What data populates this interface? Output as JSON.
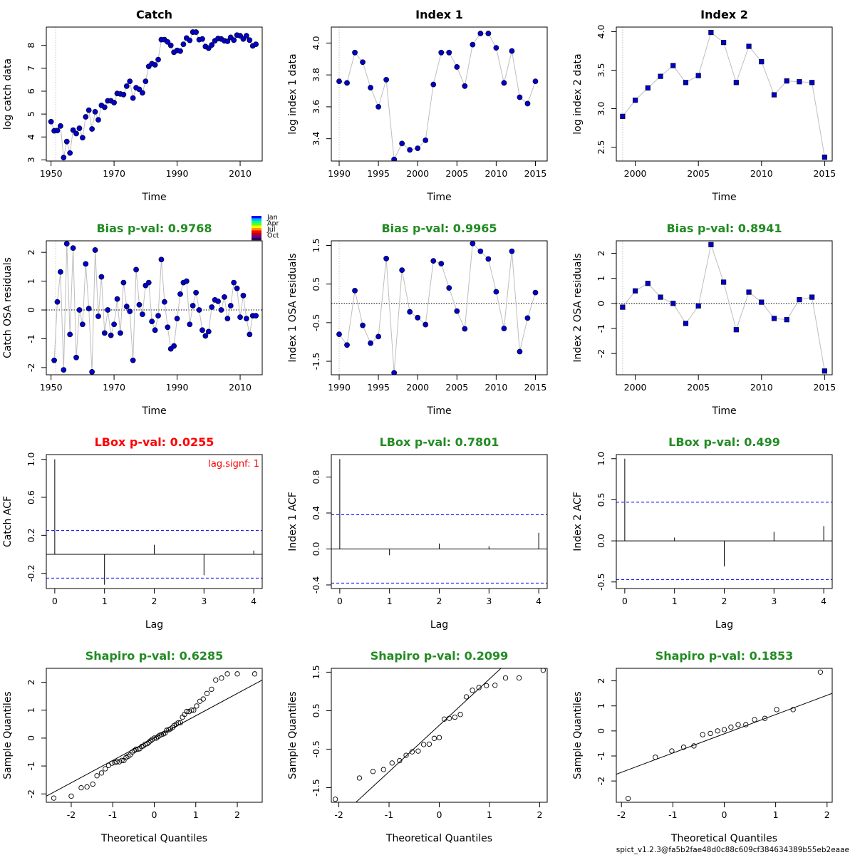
{
  "footer": "spict_v1.2.3@fa5b2fae48d0c88c609cf384634389b55eb2eaae",
  "colors": {
    "point_fill": "#0000CD",
    "point_stroke": "#000033",
    "connector": "#BEBEBE",
    "pass": "#228B22",
    "fail": "#FF0000",
    "ci_line": "#0000FF",
    "grid_line": "#BEBEBE"
  },
  "season_legend": {
    "labels": [
      "Jan",
      "Apr",
      "Jul",
      "Oct"
    ],
    "colors": [
      "#0000FF",
      "#00B4FF",
      "#00FF96",
      "#64FF00",
      "#FFFF00",
      "#FF9600",
      "#FF0000",
      "#B40000",
      "#6400A0",
      "#30004C"
    ]
  },
  "chart_data": [
    {
      "type": "scatter",
      "title": "Catch",
      "title_color": "#000000",
      "xlabel": "Time",
      "ylabel": "log catch data",
      "xlim": [
        1948.5,
        2017
      ],
      "ylim": [
        2.95,
        8.8
      ],
      "xticks": [
        1950,
        1970,
        1990,
        2010
      ],
      "yticks": [
        3,
        4,
        5,
        6,
        7,
        8
      ],
      "marker": "circle",
      "vline": 1951.5,
      "x": [
        1950,
        1951,
        1952,
        1953,
        1954,
        1955,
        1956,
        1957,
        1958,
        1959,
        1960,
        1961,
        1962,
        1963,
        1964,
        1965,
        1966,
        1967,
        1968,
        1969,
        1970,
        1971,
        1972,
        1973,
        1974,
        1975,
        1976,
        1977,
        1978,
        1979,
        1980,
        1981,
        1982,
        1983,
        1984,
        1985,
        1986,
        1987,
        1988,
        1989,
        1990,
        1991,
        1992,
        1993,
        1994,
        1995,
        1996,
        1997,
        1998,
        1999,
        2000,
        2001,
        2002,
        2003,
        2004,
        2005,
        2006,
        2007,
        2008,
        2009,
        2010,
        2011,
        2012,
        2013,
        2014,
        2015
      ],
      "y": [
        4.67,
        4.27,
        4.28,
        4.48,
        3.1,
        3.8,
        3.3,
        4.3,
        4.15,
        4.38,
        3.97,
        4.88,
        5.17,
        4.35,
        5.1,
        4.75,
        5.38,
        5.3,
        5.58,
        5.58,
        5.5,
        5.9,
        5.88,
        5.85,
        6.22,
        6.43,
        5.7,
        6.15,
        6.08,
        5.93,
        6.43,
        7.08,
        7.2,
        7.15,
        7.38,
        8.25,
        8.25,
        8.15,
        8.0,
        7.7,
        7.78,
        7.75,
        8.05,
        8.32,
        8.22,
        8.58,
        8.58,
        8.25,
        8.28,
        7.95,
        7.88,
        8.02,
        8.2,
        8.3,
        8.28,
        8.2,
        8.18,
        8.35,
        8.23,
        8.45,
        8.42,
        8.28,
        8.42,
        8.23,
        7.98,
        8.05
      ]
    },
    {
      "type": "scatter",
      "title": "Index 1",
      "title_color": "#000000",
      "xlabel": "Time",
      "ylabel": "log index 1 data",
      "xlim": [
        1989,
        2016.5
      ],
      "ylim": [
        3.26,
        4.1
      ],
      "xticks": [
        1990,
        1995,
        2000,
        2005,
        2010,
        2015
      ],
      "yticks": [
        3.4,
        3.6,
        3.8,
        4.0
      ],
      "ytick_labels": [
        "3.4",
        "3.6",
        "3.8",
        "4.0"
      ],
      "marker": "circle",
      "vline": 1990,
      "x": [
        1990,
        1991,
        1992,
        1993,
        1994,
        1995,
        1996,
        1997,
        1998,
        1999,
        2000,
        2001,
        2002,
        2003,
        2004,
        2005,
        2006,
        2007,
        2008,
        2009,
        2010,
        2011,
        2012,
        2013,
        2014,
        2015
      ],
      "y": [
        3.76,
        3.75,
        3.94,
        3.88,
        3.72,
        3.6,
        3.77,
        3.27,
        3.37,
        3.33,
        3.34,
        3.39,
        3.74,
        3.94,
        3.94,
        3.85,
        3.73,
        3.99,
        4.06,
        4.06,
        3.97,
        3.75,
        3.95,
        3.66,
        3.62,
        3.76
      ]
    },
    {
      "type": "scatter",
      "title": "Index 2",
      "title_color": "#000000",
      "xlabel": "Time",
      "ylabel": "log index 2 data",
      "xlim": [
        1998.5,
        2015.6
      ],
      "ylim": [
        2.32,
        4.06
      ],
      "xticks": [
        2000,
        2005,
        2010,
        2015
      ],
      "yticks": [
        2.5,
        3.0,
        3.5,
        4.0
      ],
      "ytick_labels": [
        "2.5",
        "3.0",
        "3.5",
        "4.0"
      ],
      "marker": "square",
      "vline": 1999,
      "x": [
        1999,
        2000,
        2001,
        2002,
        2003,
        2004,
        2005,
        2006,
        2007,
        2008,
        2009,
        2010,
        2011,
        2012,
        2013,
        2014,
        2015
      ],
      "y": [
        2.9,
        3.11,
        3.27,
        3.42,
        3.56,
        3.34,
        3.43,
        3.99,
        3.86,
        3.34,
        3.81,
        3.61,
        3.18,
        3.36,
        3.35,
        3.34,
        2.37
      ]
    },
    {
      "type": "scatter",
      "title": "Bias p-val: 0.9768",
      "title_color": "#228B22",
      "xlabel": "Time",
      "ylabel": "Catch OSA residuals",
      "xlim": [
        1948.5,
        2017
      ],
      "ylim": [
        -2.25,
        2.4
      ],
      "xticks": [
        1950,
        1970,
        1990,
        2010
      ],
      "yticks": [
        -2,
        -1,
        0,
        1,
        2
      ],
      "marker": "circle",
      "zero_line": true,
      "vline": 1951.5,
      "season_legend": true,
      "x": [
        1951,
        1952,
        1953,
        1954,
        1955,
        1956,
        1957,
        1958,
        1959,
        1960,
        1961,
        1962,
        1963,
        1964,
        1965,
        1966,
        1967,
        1968,
        1969,
        1970,
        1971,
        1972,
        1973,
        1974,
        1975,
        1976,
        1977,
        1978,
        1979,
        1980,
        1981,
        1982,
        1983,
        1984,
        1985,
        1986,
        1987,
        1988,
        1989,
        1990,
        1991,
        1992,
        1993,
        1994,
        1995,
        1996,
        1997,
        1998,
        1999,
        2000,
        2001,
        2002,
        2003,
        2004,
        2005,
        2006,
        2007,
        2008,
        2009,
        2010,
        2011,
        2012,
        2013,
        2014,
        2015
      ],
      "y": [
        -1.75,
        0.28,
        1.32,
        -2.08,
        2.3,
        -0.85,
        2.15,
        -1.65,
        0.0,
        -0.5,
        1.6,
        0.05,
        -2.15,
        2.08,
        -0.22,
        1.15,
        -0.8,
        0.0,
        -0.88,
        -0.5,
        0.38,
        -0.8,
        0.95,
        0.12,
        -0.05,
        -1.75,
        1.4,
        0.18,
        -0.15,
        0.85,
        0.95,
        -0.4,
        -0.7,
        -0.2,
        1.75,
        0.28,
        -0.6,
        -1.35,
        -1.25,
        -0.3,
        0.55,
        0.95,
        1.0,
        -0.5,
        0.15,
        0.6,
        0.0,
        -0.7,
        -0.9,
        -0.75,
        0.1,
        0.35,
        0.3,
        0.0,
        0.45,
        -0.3,
        0.15,
        0.95,
        0.75,
        -0.25,
        0.5,
        -0.3,
        -0.85,
        -0.2,
        -0.2
      ]
    },
    {
      "type": "scatter",
      "title": "Bias p-val: 0.9965",
      "title_color": "#228B22",
      "xlabel": "Time",
      "ylabel": "Index 1 OSA residuals",
      "xlim": [
        1989,
        2016.5
      ],
      "ylim": [
        -1.85,
        1.62
      ],
      "xticks": [
        1990,
        1995,
        2000,
        2005,
        2010,
        2015
      ],
      "yticks": [
        -1.5,
        -0.5,
        0.5,
        1.5
      ],
      "ytick_labels": [
        "-1.5",
        "-0.5",
        "0.5",
        "1.5"
      ],
      "marker": "circle",
      "zero_line": true,
      "vline": 1990,
      "x": [
        1990,
        1991,
        1992,
        1993,
        1994,
        1995,
        1996,
        1997,
        1998,
        1999,
        2000,
        2001,
        2002,
        2003,
        2004,
        2005,
        2006,
        2007,
        2008,
        2009,
        2010,
        2011,
        2012,
        2013,
        2014,
        2015
      ],
      "y": [
        -0.8,
        -1.08,
        0.33,
        -0.57,
        -1.03,
        -0.86,
        1.16,
        -1.8,
        0.86,
        -0.22,
        -0.37,
        -0.55,
        1.1,
        1.03,
        0.4,
        -0.2,
        -0.66,
        1.55,
        1.35,
        1.15,
        0.3,
        -0.65,
        1.35,
        -1.25,
        -0.38,
        0.28
      ]
    },
    {
      "type": "scatter",
      "title": "Bias p-val: 0.8941",
      "title_color": "#228B22",
      "xlabel": "Time",
      "ylabel": "Index 2 OSA residuals",
      "xlim": [
        1998.5,
        2015.6
      ],
      "ylim": [
        -2.85,
        2.5
      ],
      "xticks": [
        2000,
        2005,
        2010,
        2015
      ],
      "yticks": [
        -2,
        -1,
        0,
        1,
        2
      ],
      "marker": "square",
      "zero_line": true,
      "vline": 1999,
      "x": [
        1999,
        2000,
        2001,
        2002,
        2003,
        2004,
        2005,
        2006,
        2007,
        2008,
        2009,
        2010,
        2011,
        2012,
        2013,
        2014,
        2015
      ],
      "y": [
        -0.15,
        0.5,
        0.8,
        0.25,
        0.0,
        -0.8,
        -0.1,
        2.35,
        0.85,
        -1.05,
        0.45,
        0.05,
        -0.6,
        -0.65,
        0.15,
        0.25,
        -2.7
      ]
    },
    {
      "type": "bar",
      "title": "LBox p-val: 0.0255",
      "title_color": "#FF0000",
      "xlabel": "Lag",
      "ylabel": "Catch ACF",
      "xlim": [
        -0.17,
        4.17
      ],
      "ylim": [
        -0.36,
        1.05
      ],
      "xticks": [
        0,
        1,
        2,
        3,
        4
      ],
      "yticks": [
        -0.2,
        0.2,
        0.6,
        1.0
      ],
      "ytick_labels": [
        "-0.2",
        "0.2",
        "0.6",
        "1.0"
      ],
      "x": [
        0,
        1,
        2,
        3,
        4
      ],
      "values": [
        1.0,
        -0.32,
        0.1,
        -0.22,
        0.04
      ],
      "ci": 0.25,
      "annotation": "lag.signf: 1"
    },
    {
      "type": "bar",
      "title": "LBox p-val: 0.7801",
      "title_color": "#228B22",
      "xlabel": "Lag",
      "ylabel": "Index 1 ACF",
      "xlim": [
        -0.17,
        4.17
      ],
      "ylim": [
        -0.44,
        1.05
      ],
      "xticks": [
        0,
        1,
        2,
        3,
        4
      ],
      "yticks": [
        -0.4,
        0.0,
        0.4,
        0.8
      ],
      "ytick_labels": [
        "-0.4",
        "0.0",
        "0.4",
        "0.8"
      ],
      "x": [
        0,
        1,
        2,
        3,
        4
      ],
      "values": [
        1.0,
        -0.07,
        0.06,
        0.03,
        0.18
      ],
      "ci": 0.38
    },
    {
      "type": "bar",
      "title": "LBox p-val: 0.499",
      "title_color": "#228B22",
      "xlabel": "Lag",
      "ylabel": "Index 2 ACF",
      "xlim": [
        -0.17,
        4.17
      ],
      "ylim": [
        -0.58,
        1.05
      ],
      "xticks": [
        0,
        1,
        2,
        3,
        4
      ],
      "yticks": [
        -0.5,
        0.0,
        0.5,
        1.0
      ],
      "ytick_labels": [
        "-0.5",
        "0.0",
        "0.5",
        "1.0"
      ],
      "x": [
        0,
        1,
        2,
        3,
        4
      ],
      "values": [
        1.0,
        0.04,
        -0.31,
        0.11,
        0.18
      ],
      "ci": 0.47
    },
    {
      "type": "scatter",
      "title": "Shapiro p-val: 0.6285",
      "title_color": "#228B22",
      "xlabel": "Theoretical Quantiles",
      "ylabel": "Sample Quantiles",
      "xlim": [
        -2.6,
        2.6
      ],
      "ylim": [
        -2.3,
        2.5
      ],
      "xticks": [
        -2,
        -1,
        0,
        1,
        2
      ],
      "yticks": [
        -2,
        -1,
        0,
        1,
        2
      ],
      "marker": "open-circle",
      "qq_line": [
        [
          -2.6,
          -2.08
        ],
        [
          2.6,
          2.08
        ]
      ],
      "x": [
        -2.42,
        -2.0,
        -1.76,
        -1.62,
        -1.48,
        -1.38,
        -1.27,
        -1.18,
        -1.1,
        -1.02,
        -0.95,
        -0.9,
        -0.84,
        -0.78,
        -0.73,
        -0.68,
        -0.63,
        -0.58,
        -0.53,
        -0.48,
        -0.44,
        -0.39,
        -0.35,
        -0.3,
        -0.26,
        -0.22,
        -0.17,
        -0.13,
        -0.09,
        -0.05,
        0.0,
        0.05,
        0.09,
        0.13,
        0.17,
        0.22,
        0.26,
        0.3,
        0.35,
        0.39,
        0.44,
        0.48,
        0.53,
        0.58,
        0.63,
        0.68,
        0.73,
        0.78,
        0.84,
        0.9,
        0.95,
        1.02,
        1.1,
        1.18,
        1.27,
        1.38,
        1.48,
        1.62,
        1.76,
        2.0,
        2.42
      ],
      "y": [
        -2.15,
        -2.08,
        -1.78,
        -1.75,
        -1.65,
        -1.35,
        -1.25,
        -1.1,
        -0.98,
        -0.9,
        -0.88,
        -0.85,
        -0.85,
        -0.8,
        -0.8,
        -0.7,
        -0.65,
        -0.6,
        -0.5,
        -0.45,
        -0.4,
        -0.4,
        -0.38,
        -0.3,
        -0.28,
        -0.22,
        -0.2,
        -0.15,
        -0.1,
        -0.05,
        0.0,
        0.0,
        0.05,
        0.1,
        0.12,
        0.15,
        0.18,
        0.28,
        0.3,
        0.33,
        0.38,
        0.45,
        0.5,
        0.55,
        0.55,
        0.75,
        0.85,
        0.95,
        0.95,
        1.0,
        1.0,
        1.15,
        1.32,
        1.4,
        1.6,
        1.75,
        2.08,
        2.15,
        2.3,
        2.3,
        2.3
      ]
    },
    {
      "type": "scatter",
      "title": "Shapiro p-val: 0.2099",
      "title_color": "#228B22",
      "xlabel": "Theoretical Quantiles",
      "ylabel": "Sample Quantiles",
      "xlim": [
        -2.15,
        2.15
      ],
      "ylim": [
        -1.88,
        1.6
      ],
      "xticks": [
        -2,
        -1,
        0,
        1,
        2
      ],
      "yticks": [
        -1.5,
        -0.5,
        0.5,
        1.5
      ],
      "ytick_labels": [
        "-1.5",
        "-0.5",
        "0.5",
        "1.5"
      ],
      "marker": "open-circle",
      "qq_line": [
        [
          -1.66,
          -1.88
        ],
        [
          1.23,
          1.6
        ]
      ],
      "x": [
        -2.07,
        -1.59,
        -1.32,
        -1.11,
        -0.94,
        -0.79,
        -0.66,
        -0.54,
        -0.42,
        -0.31,
        -0.2,
        -0.1,
        0.0,
        0.1,
        0.2,
        0.31,
        0.42,
        0.54,
        0.66,
        0.79,
        0.94,
        1.11,
        1.32,
        1.59,
        2.07
      ],
      "y": [
        -1.8,
        -1.25,
        -1.08,
        -1.03,
        -0.86,
        -0.8,
        -0.66,
        -0.57,
        -0.55,
        -0.38,
        -0.37,
        -0.22,
        -0.2,
        0.28,
        0.3,
        0.33,
        0.4,
        0.86,
        1.03,
        1.1,
        1.15,
        1.16,
        1.35,
        1.35,
        1.55
      ]
    },
    {
      "type": "scatter",
      "title": "Shapiro p-val: 0.1853",
      "title_color": "#228B22",
      "xlabel": "Theoretical Quantiles",
      "ylabel": "Sample Quantiles",
      "xlim": [
        -2.1,
        2.1
      ],
      "ylim": [
        -2.85,
        2.5
      ],
      "xticks": [
        -2,
        -1,
        0,
        1,
        2
      ],
      "yticks": [
        -2,
        -1,
        0,
        1,
        2
      ],
      "marker": "open-circle",
      "qq_line": [
        [
          -2.1,
          -1.73
        ],
        [
          2.1,
          1.5
        ]
      ],
      "x": [
        -1.87,
        -1.34,
        -1.02,
        -0.79,
        -0.59,
        -0.42,
        -0.27,
        -0.13,
        0.0,
        0.13,
        0.27,
        0.42,
        0.59,
        0.79,
        1.02,
        1.34,
        1.87
      ],
      "y": [
        -2.7,
        -1.05,
        -0.8,
        -0.65,
        -0.6,
        -0.15,
        -0.1,
        0.0,
        0.05,
        0.15,
        0.25,
        0.25,
        0.45,
        0.5,
        0.85,
        0.85,
        2.35
      ]
    }
  ]
}
